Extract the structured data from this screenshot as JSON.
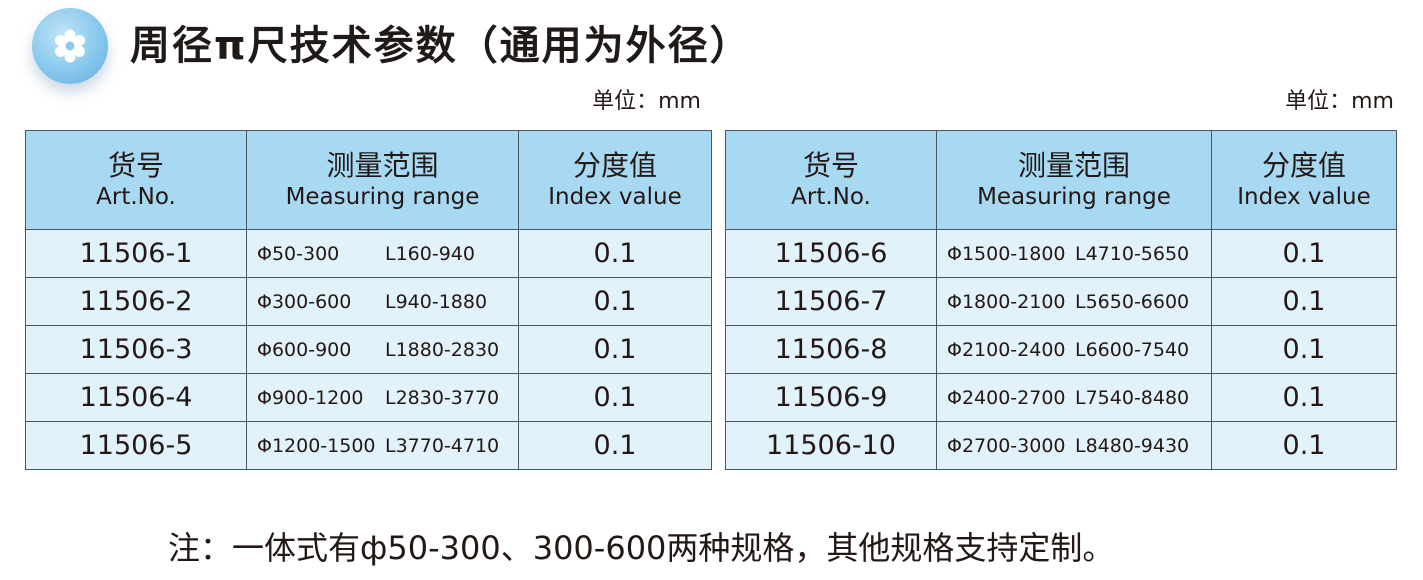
{
  "title": "周径π尺技术参数（通用为外径）",
  "icon": "gear-icon",
  "unit_label": "单位：mm",
  "headers": {
    "art_zh": "货号",
    "art_en": "Art.No.",
    "range_zh": "测量范围",
    "range_en": "Measuring range",
    "index_zh": "分度值",
    "index_en": "Index value"
  },
  "left_rows": [
    {
      "art": "11506-1",
      "dia": "Φ50-300",
      "len": "L160-940",
      "index": "0.1"
    },
    {
      "art": "11506-2",
      "dia": "Φ300-600",
      "len": "L940-1880",
      "index": "0.1"
    },
    {
      "art": "11506-3",
      "dia": "Φ600-900",
      "len": "L1880-2830",
      "index": "0.1"
    },
    {
      "art": "11506-4",
      "dia": "Φ900-1200",
      "len": "L2830-3770",
      "index": "0.1"
    },
    {
      "art": "11506-5",
      "dia": "Φ1200-1500",
      "len": "L3770-4710",
      "index": "0.1"
    }
  ],
  "right_rows": [
    {
      "art": "11506-6",
      "dia": "Φ1500-1800",
      "len": "L4710-5650",
      "index": "0.1"
    },
    {
      "art": "11506-7",
      "dia": "Φ1800-2100",
      "len": "L5650-6600",
      "index": "0.1"
    },
    {
      "art": "11506-8",
      "dia": "Φ2100-2400",
      "len": "L6600-7540",
      "index": "0.1"
    },
    {
      "art": "11506-9",
      "dia": "Φ2400-2700",
      "len": "L7540-8480",
      "index": "0.1"
    },
    {
      "art": "11506-10",
      "dia": "Φ2700-3000",
      "len": "L8480-9430",
      "index": "0.1"
    }
  ],
  "note": "注：一体式有ф50-300、300-600两种规格，其他规格支持定制。"
}
